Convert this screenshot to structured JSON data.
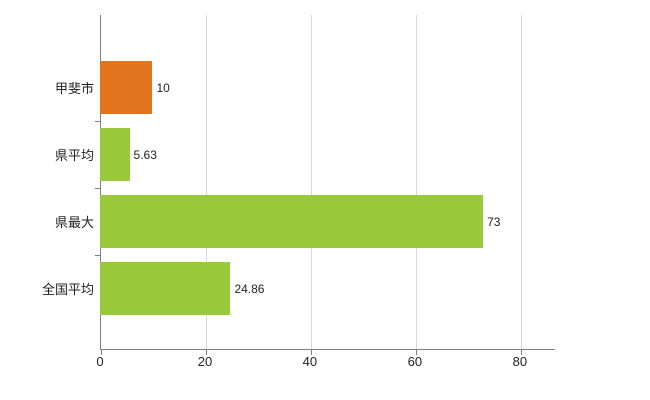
{
  "chart_data": {
    "type": "bar",
    "orientation": "horizontal",
    "categories": [
      "甲斐市",
      "県平均",
      "県最大",
      "全国平均"
    ],
    "values": [
      10,
      5.63,
      73,
      24.86
    ],
    "value_labels": [
      "10",
      "5.63",
      "73",
      "24.86"
    ],
    "bar_colors": [
      "#e2751d",
      "#9aca3c",
      "#9aca3c",
      "#9aca3c"
    ],
    "x_ticks": [
      0,
      20,
      40,
      60,
      80
    ],
    "xlim": [
      0,
      86.7
    ],
    "grid": "vertical",
    "colors": {
      "orange_bar": "#e2751d",
      "green_bar": "#9aca3c",
      "axis": "#808080",
      "gridline": "#d9d9d9"
    }
  }
}
